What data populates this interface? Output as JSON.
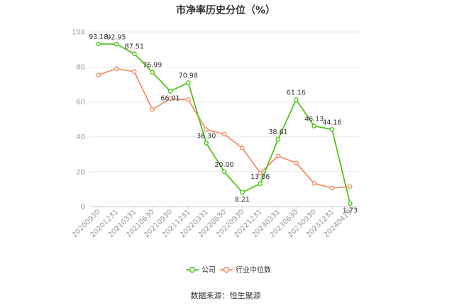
{
  "chart_data": {
    "type": "line",
    "title": "市净率历史分位（%）",
    "categories": [
      "20200930",
      "20201231",
      "20210331",
      "20210630",
      "20210930",
      "20211231",
      "20220331",
      "20220630",
      "20220930",
      "20221231",
      "20230331",
      "20230630",
      "20230930",
      "20231231",
      "20240419"
    ],
    "ylim": [
      0,
      100
    ],
    "yticks": [
      0,
      20,
      40,
      60,
      80,
      100
    ],
    "grid": true,
    "legend_position": "bottom",
    "series": [
      {
        "name": "公司",
        "color": "#52c41a",
        "values": [
          93.18,
          92.95,
          87.51,
          76.99,
          66.01,
          70.98,
          36.3,
          20.0,
          8.21,
          13.06,
          38.61,
          61.16,
          46.13,
          44.16,
          1.73
        ],
        "labels": [
          "93.18",
          "92.95",
          "87.51",
          "76.99",
          "66.01",
          "70.98",
          "36.30",
          "20.00",
          "8.21",
          "13.06",
          "38.61",
          "61.16",
          "46.13",
          "44.16",
          "1.73"
        ]
      },
      {
        "name": "行业中位数",
        "color": "#f0906a",
        "values": [
          75.3,
          79.0,
          77.3,
          55.6,
          61.8,
          61.2,
          44.1,
          41.5,
          33.6,
          19.3,
          29.0,
          25.0,
          13.3,
          10.6,
          11.4
        ]
      }
    ],
    "source": "数据来源：恒生聚源"
  }
}
